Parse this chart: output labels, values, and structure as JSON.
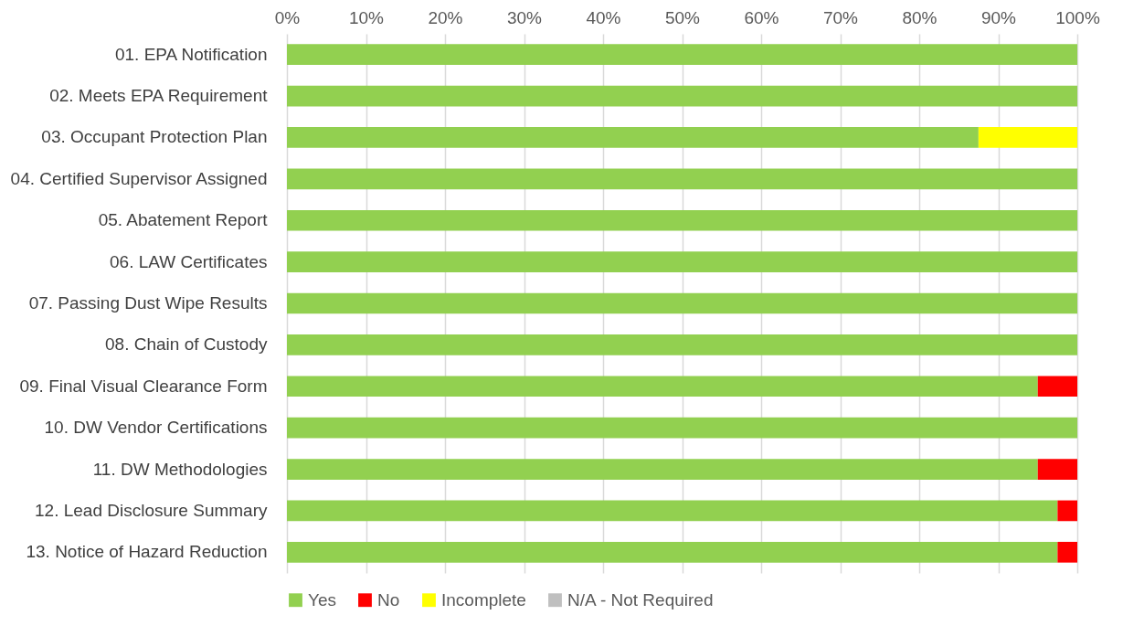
{
  "chart_data": {
    "type": "bar",
    "orientation": "horizontal",
    "stacked": true,
    "categories": [
      "01. EPA Notification",
      "02. Meets EPA Requirement",
      "03. Occupant Protection Plan",
      "04. Certified Supervisor Assigned",
      "05. Abatement Report",
      "06. LAW Certificates",
      "07. Passing Dust Wipe Results",
      "08. Chain of Custody",
      "09. Final Visual Clearance Form",
      "10. DW Vendor Certifications",
      "11. DW Methodologies",
      "12. Lead Disclosure Summary",
      "13. Notice of Hazard Reduction"
    ],
    "series": [
      {
        "name": "Yes",
        "color": "#92d050",
        "values": [
          100,
          100,
          87.5,
          100,
          100,
          100,
          100,
          100,
          95,
          100,
          95,
          97.5,
          97.5
        ]
      },
      {
        "name": "No",
        "color": "#ff0000",
        "values": [
          0,
          0,
          0,
          0,
          0,
          0,
          0,
          0,
          5,
          0,
          5,
          2.5,
          2.5
        ]
      },
      {
        "name": "Incomplete",
        "color": "#ffff00",
        "values": [
          0,
          0,
          12.5,
          0,
          0,
          0,
          0,
          0,
          0,
          0,
          0,
          0,
          0
        ]
      },
      {
        "name": "N/A - Not Required",
        "color": "#bfbfbf",
        "values": [
          0,
          0,
          0,
          0,
          0,
          0,
          0,
          0,
          0,
          0,
          0,
          0,
          0
        ]
      }
    ],
    "xlim": [
      0,
      100
    ],
    "xticks": [
      {
        "value": 0,
        "label": "0%"
      },
      {
        "value": 10,
        "label": "10%"
      },
      {
        "value": 20,
        "label": "20%"
      },
      {
        "value": 30,
        "label": "30%"
      },
      {
        "value": 40,
        "label": "40%"
      },
      {
        "value": 50,
        "label": "50%"
      },
      {
        "value": 60,
        "label": "60%"
      },
      {
        "value": 70,
        "label": "70%"
      },
      {
        "value": 80,
        "label": "80%"
      },
      {
        "value": 90,
        "label": "90%"
      },
      {
        "value": 100,
        "label": "100%"
      }
    ],
    "grid": "x",
    "legend": "bottom"
  }
}
